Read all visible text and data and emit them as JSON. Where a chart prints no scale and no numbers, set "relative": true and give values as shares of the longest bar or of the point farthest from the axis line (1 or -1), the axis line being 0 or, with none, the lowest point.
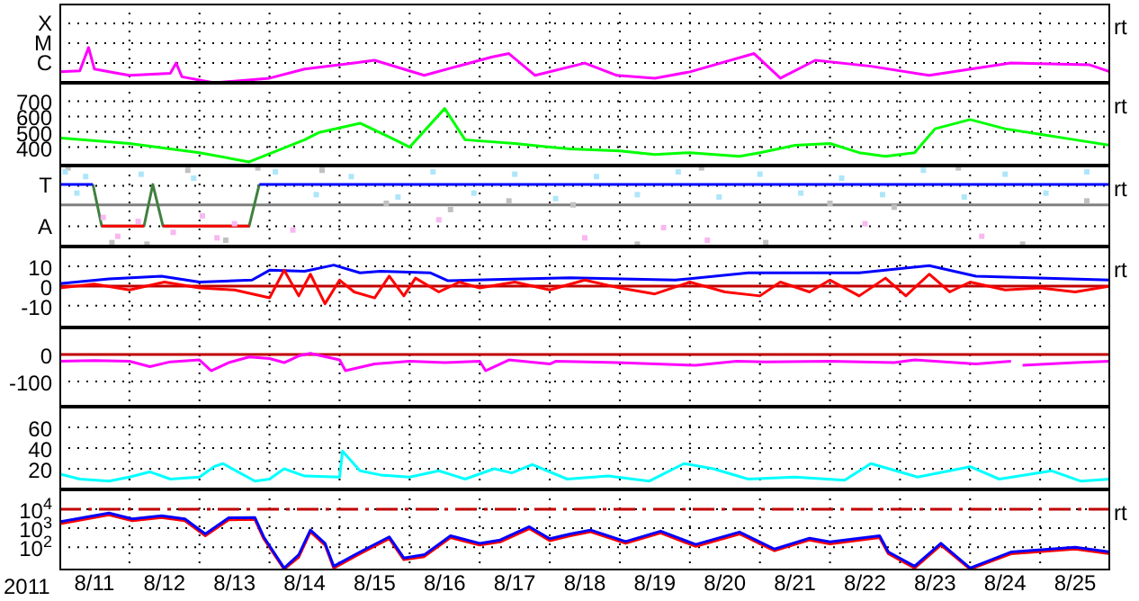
{
  "chart_data": [
    {
      "type": "line",
      "relative": true,
      "xlim": [
        "2011-08-11",
        "2011-08-26"
      ],
      "xticks": [
        {
          "value": "2011-08-12",
          "label": null
        },
        {
          "value": "2011-08-13",
          "label": null
        },
        {
          "value": "2011-08-14",
          "label": null
        },
        {
          "value": "2011-08-15",
          "label": null
        },
        {
          "value": "2011-08-16",
          "label": null
        },
        {
          "value": "2011-08-17",
          "label": null
        },
        {
          "value": "2011-08-18",
          "label": null
        },
        {
          "value": "2011-08-19",
          "label": null
        },
        {
          "value": "2011-08-20",
          "label": null
        },
        {
          "value": "2011-08-21",
          "label": null
        },
        {
          "value": "2011-08-22",
          "label": null
        },
        {
          "value": "2011-08-23",
          "label": null
        },
        {
          "value": "2011-08-24",
          "label": null
        },
        {
          "value": "2011-08-25",
          "label": null
        }
      ],
      "grid": true,
      "tick_labels": "y",
      "annotations": [
        "rt",
        "X",
        "M",
        "C"
      ],
      "series": [
        {
          "color": "#ff00ff",
          "x": [
            "2011-08-11T00:00",
            "2011-08-11T07:00",
            "2011-08-11T10:00",
            "2011-08-11T12:00",
            "2011-08-11T20:00",
            "2011-08-12T00:00",
            "2011-08-12T14:00",
            "2011-08-12T16:00",
            "2011-08-12T18:00",
            "2011-08-13T05:00",
            "2011-08-14T00:00",
            "2011-08-14T12:00",
            "2011-08-15T05:00",
            "2011-08-15T12:00",
            "2011-08-16T05:00",
            "2011-08-17T04:00",
            "2011-08-17T10:00",
            "2011-08-17T19:00",
            "2011-08-18T12:00",
            "2011-08-18T23:00",
            "2011-08-19T12:00",
            "2011-08-20T00:00",
            "2011-08-20T22:00",
            "2011-08-21T07:00",
            "2011-08-21T19:00",
            "2011-08-22T14:00",
            "2011-08-23T10:00",
            "2011-08-24T14:00",
            "2011-08-25T17:00",
            "2011-08-26T00:00"
          ],
          "values": [
            0.31,
            0.34,
            1,
            0.39,
            0.27,
            0.21,
            0.27,
            0.56,
            0.17,
            0,
            0.13,
            0.39,
            0.56,
            0.64,
            0.21,
            0.73,
            0.83,
            0.21,
            0.56,
            0.21,
            0.13,
            0.31,
            0.83,
            0.13,
            0.64,
            0.47,
            0.21,
            0.56,
            0.51,
            0.31
          ]
        }
      ]
    },
    {
      "type": "line",
      "ylim": [
        280,
        820
      ],
      "yticks": [
        400,
        500,
        600,
        700
      ],
      "xlim": [
        "2011-08-11",
        "2011-08-26"
      ],
      "xticks": [
        {
          "value": "2011-08-12",
          "label": null
        },
        {
          "value": "2011-08-13",
          "label": null
        },
        {
          "value": "2011-08-14",
          "label": null
        },
        {
          "value": "2011-08-15",
          "label": null
        },
        {
          "value": "2011-08-16",
          "label": null
        },
        {
          "value": "2011-08-17",
          "label": null
        },
        {
          "value": "2011-08-18",
          "label": null
        },
        {
          "value": "2011-08-19",
          "label": null
        },
        {
          "value": "2011-08-20",
          "label": null
        },
        {
          "value": "2011-08-21",
          "label": null
        },
        {
          "value": "2011-08-22",
          "label": null
        },
        {
          "value": "2011-08-23",
          "label": null
        },
        {
          "value": "2011-08-24",
          "label": null
        },
        {
          "value": "2011-08-25",
          "label": null
        }
      ],
      "grid": true,
      "tick_labels": "y",
      "annotations": [
        "rt"
      ],
      "series": [
        {
          "color": "#00ff00",
          "x": [
            "2011-08-11T00:00",
            "2011-08-12T00:00",
            "2011-08-13T00:00",
            "2011-08-13T17:00",
            "2011-08-14T12:00",
            "2011-08-14T17:00",
            "2011-08-15T07:00",
            "2011-08-15T19:00",
            "2011-08-16T00:00",
            "2011-08-16T12:00",
            "2011-08-16T19:00",
            "2011-08-17T12:00",
            "2011-08-18T00:00",
            "2011-08-18T07:00",
            "2011-08-19T00:00",
            "2011-08-19T12:00",
            "2011-08-20T00:00",
            "2011-08-20T17:00",
            "2011-08-21T00:00",
            "2011-08-21T12:00",
            "2011-08-22T00:00",
            "2011-08-22T10:00",
            "2011-08-22T19:00",
            "2011-08-23T05:00",
            "2011-08-23T12:00",
            "2011-08-24T00:00",
            "2011-08-24T12:00",
            "2011-08-25T00:00",
            "2011-08-25T12:00",
            "2011-08-26T00:00"
          ],
          "values": [
            460,
            424,
            364,
            304,
            448,
            496,
            556,
            448,
            400,
            652,
            448,
            424,
            400,
            388,
            376,
            352,
            364,
            340,
            364,
            412,
            424,
            364,
            340,
            364,
            520,
            580,
            520,
            484,
            448,
            412
          ]
        }
      ]
    },
    {
      "type": "line",
      "relative": true,
      "xlim": [
        "2011-08-11",
        "2011-08-26"
      ],
      "xticks": [
        {
          "value": "2011-08-12",
          "label": null
        },
        {
          "value": "2011-08-13",
          "label": null
        },
        {
          "value": "2011-08-14",
          "label": null
        },
        {
          "value": "2011-08-15",
          "label": null
        },
        {
          "value": "2011-08-16",
          "label": null
        },
        {
          "value": "2011-08-17",
          "label": null
        },
        {
          "value": "2011-08-18",
          "label": null
        },
        {
          "value": "2011-08-19",
          "label": null
        },
        {
          "value": "2011-08-20",
          "label": null
        },
        {
          "value": "2011-08-21",
          "label": null
        },
        {
          "value": "2011-08-22",
          "label": null
        },
        {
          "value": "2011-08-23",
          "label": null
        },
        {
          "value": "2011-08-24",
          "label": null
        },
        {
          "value": "2011-08-25",
          "label": null
        }
      ],
      "grid": true,
      "tick_labels": "y",
      "annotations": [
        "rt",
        "T",
        "A"
      ],
      "ref_lines": [
        {
          "axis": "y",
          "value": 0.53,
          "label": null,
          "color": "#808080"
        }
      ],
      "series": [
        {
          "type": "scatter",
          "marker": "square",
          "color": "#c0c0c0",
          "x": [
            "2011-08-11T03:00",
            "2011-08-11T18:00",
            "2011-08-12T06:00",
            "2011-08-12T20:00",
            "2011-08-13T09:00",
            "2011-08-13T20:00",
            "2011-08-14T18:00",
            "2011-08-15T16:00",
            "2011-08-16T14:00",
            "2011-08-17T10:00",
            "2011-08-18T08:00",
            "2011-08-19T06:00",
            "2011-08-20T04:00",
            "2011-08-21T02:00",
            "2011-08-22T00:00",
            "2011-08-22T22:00",
            "2011-08-23T20:00",
            "2011-08-24T18:00",
            "2011-08-25T16:00"
          ],
          "values": [
            1,
            0.05,
            0.03,
            0.97,
            0.08,
            1,
            0.97,
            0.55,
            0.47,
            0.58,
            0.53,
            0.03,
            1,
            0.05,
            0.55,
            0.5,
            1,
            0.03,
            0.58
          ]
        },
        {
          "type": "scatter",
          "marker": "square",
          "color": "#aee6f9",
          "x": [
            "2011-08-11T02:00",
            "2011-08-11T06:00",
            "2011-08-11T09:00",
            "2011-08-12T04:00",
            "2011-08-12T22:00",
            "2011-08-14T02:00",
            "2011-08-14T16:00",
            "2011-08-15T04:00",
            "2011-08-15T20:00",
            "2011-08-16T08:00",
            "2011-08-16T22:00",
            "2011-08-17T12:00",
            "2011-08-18T02:00",
            "2011-08-18T16:00",
            "2011-08-19T06:00",
            "2011-08-19T20:00",
            "2011-08-20T10:00",
            "2011-08-21T00:00",
            "2011-08-21T14:00",
            "2011-08-22T04:00",
            "2011-08-22T18:00",
            "2011-08-23T08:00",
            "2011-08-23T22:00",
            "2011-08-24T12:00",
            "2011-08-25T02:00",
            "2011-08-25T16:00"
          ],
          "values": [
            0.95,
            0.68,
            0.89,
            0.92,
            0.87,
            0.95,
            0.66,
            0.89,
            0.63,
            0.95,
            0.68,
            0.92,
            0.61,
            0.89,
            0.66,
            0.95,
            0.63,
            0.92,
            0.68,
            0.87,
            0.66,
            0.97,
            0.63,
            0.92,
            0.68,
            0.95
          ]
        },
        {
          "type": "scatter",
          "marker": "square",
          "color": "#f8b8f0",
          "x": [
            "2011-08-11T15:00",
            "2011-08-11T20:00",
            "2011-08-12T03:00",
            "2011-08-12T15:00",
            "2011-08-13T01:00",
            "2011-08-13T06:00",
            "2011-08-13T12:00",
            "2011-08-14T08:00",
            "2011-08-16T10:00",
            "2011-08-18T12:00",
            "2011-08-19T15:00",
            "2011-08-20T06:00",
            "2011-08-22T12:00",
            "2011-08-24T04:00"
          ],
          "values": [
            0.37,
            0.13,
            0.32,
            0.18,
            0.39,
            0.11,
            0.29,
            0.21,
            0.34,
            0.11,
            0.24,
            0.08,
            0.29,
            0.13
          ]
        },
        {
          "color": "#408040",
          "x": [
            "2011-08-11T11:30",
            "2011-08-11T14:30",
            "2011-08-12T05:00",
            "2011-08-12T08:00",
            "2011-08-12T11:30",
            "2011-08-13T17:00",
            "2011-08-13T20:30"
          ],
          "values": [
            0.79,
            0.26,
            0.26,
            0.79,
            0.26,
            0.26,
            0.79
          ]
        },
        {
          "color": "#ff0000",
          "x": [
            "2011-08-11T14:30",
            "2011-08-12T05:00",
            null,
            "2011-08-12T11:30",
            "2011-08-13T17:00"
          ],
          "values": [
            0.26,
            0.26,
            null,
            0.26,
            0.26
          ]
        },
        {
          "color": "#0000ff",
          "x": [
            "2011-08-11T00:00",
            "2011-08-11T11:30",
            null,
            "2011-08-13T20:30",
            "2011-08-26T00:00"
          ],
          "values": [
            0.79,
            0.79,
            null,
            0.79,
            0.79
          ]
        }
      ]
    },
    {
      "type": "line",
      "ylim": [
        -21,
        20
      ],
      "yticks": [
        10,
        0,
        -10
      ],
      "xlim": [
        "2011-08-11",
        "2011-08-26"
      ],
      "xticks": [
        {
          "value": "2011-08-12",
          "label": null
        },
        {
          "value": "2011-08-13",
          "label": null
        },
        {
          "value": "2011-08-14",
          "label": null
        },
        {
          "value": "2011-08-15",
          "label": null
        },
        {
          "value": "2011-08-16",
          "label": null
        },
        {
          "value": "2011-08-17",
          "label": null
        },
        {
          "value": "2011-08-18",
          "label": null
        },
        {
          "value": "2011-08-19",
          "label": null
        },
        {
          "value": "2011-08-20",
          "label": null
        },
        {
          "value": "2011-08-21",
          "label": null
        },
        {
          "value": "2011-08-22",
          "label": null
        },
        {
          "value": "2011-08-23",
          "label": null
        },
        {
          "value": "2011-08-24",
          "label": null
        },
        {
          "value": "2011-08-25",
          "label": null
        }
      ],
      "grid": true,
      "tick_labels": "y",
      "annotations": [
        "rt"
      ],
      "ref_lines": [
        {
          "axis": "y",
          "value": 0,
          "label": null,
          "color": "#c00000"
        }
      ],
      "series": [
        {
          "color": "#0000ff",
          "x": [
            "2011-08-11T00:00",
            "2011-08-11T17:00",
            "2011-08-12T11:00",
            "2011-08-13T00:00",
            "2011-08-13T18:00",
            "2011-08-14T00:00",
            "2011-08-14T12:00",
            "2011-08-14T22:00",
            "2011-08-15T07:00",
            "2011-08-15T14:00",
            "2011-08-16T07:00",
            "2011-08-16T13:00",
            "2011-08-17T14:00",
            "2011-08-18T07:00",
            "2011-08-19T19:00",
            "2011-08-20T20:00",
            "2011-08-22T10:00",
            "2011-08-23T10:00",
            "2011-08-24T02:00",
            "2011-08-26T00:00"
          ],
          "values": [
            1.2,
            3.6,
            5,
            2,
            3,
            8,
            7.5,
            10.6,
            6.7,
            7.5,
            6.7,
            2.7,
            3.6,
            4.2,
            3,
            6.7,
            6.7,
            10.3,
            5,
            3
          ]
        },
        {
          "color": "#ff0000",
          "x": [
            "2011-08-11T00:00",
            "2011-08-11T12:00",
            "2011-08-12T00:00",
            "2011-08-12T12:00",
            "2011-08-13T00:00",
            "2011-08-13T12:00",
            "2011-08-14T00:00",
            "2011-08-14T05:00",
            "2011-08-14T10:00",
            "2011-08-14T14:00",
            "2011-08-14T19:00",
            "2011-08-15T00:00",
            "2011-08-15T05:00",
            "2011-08-15T12:00",
            "2011-08-15T17:00",
            "2011-08-15T22:00",
            "2011-08-16T02:00",
            "2011-08-16T10:00",
            "2011-08-16T17:00",
            "2011-08-17T00:00",
            "2011-08-17T12:00",
            "2011-08-18T00:00",
            "2011-08-18T12:00",
            "2011-08-19T00:00",
            "2011-08-19T12:00",
            "2011-08-20T00:00",
            "2011-08-20T12:00",
            "2011-08-21T00:00",
            "2011-08-21T07:00",
            "2011-08-21T17:00",
            "2011-08-22T00:00",
            "2011-08-22T10:00",
            "2011-08-22T19:00",
            "2011-08-23T02:00",
            "2011-08-23T10:00",
            "2011-08-23T17:00",
            "2011-08-24T00:00",
            "2011-08-24T12:00",
            "2011-08-25T00:00",
            "2011-08-25T12:00",
            "2011-08-26T00:00"
          ],
          "values": [
            -1,
            1,
            -2,
            2,
            -1,
            -2,
            -6,
            8,
            -5,
            6,
            -9,
            3,
            -3,
            -6,
            5,
            -5,
            4,
            -3,
            2,
            -1,
            2,
            -2,
            3,
            -1,
            -4,
            2,
            -3,
            -5,
            2,
            -3,
            3,
            -5,
            4,
            -5,
            6,
            -3,
            2,
            -2,
            -1,
            -3,
            0
          ]
        }
      ]
    },
    {
      "type": "line",
      "ylim": [
        -193,
        100
      ],
      "yticks": [
        0,
        -100
      ],
      "xlim": [
        "2011-08-11",
        "2011-08-26"
      ],
      "xticks": [
        {
          "value": "2011-08-12",
          "label": null
        },
        {
          "value": "2011-08-13",
          "label": null
        },
        {
          "value": "2011-08-14",
          "label": null
        },
        {
          "value": "2011-08-15",
          "label": null
        },
        {
          "value": "2011-08-16",
          "label": null
        },
        {
          "value": "2011-08-17",
          "label": null
        },
        {
          "value": "2011-08-18",
          "label": null
        },
        {
          "value": "2011-08-19",
          "label": null
        },
        {
          "value": "2011-08-20",
          "label": null
        },
        {
          "value": "2011-08-21",
          "label": null
        },
        {
          "value": "2011-08-22",
          "label": null
        },
        {
          "value": "2011-08-23",
          "label": null
        },
        {
          "value": "2011-08-24",
          "label": null
        },
        {
          "value": "2011-08-25",
          "label": null
        }
      ],
      "grid": true,
      "tick_labels": "y",
      "ref_lines": [
        {
          "axis": "y",
          "value": 0,
          "label": null,
          "color": "#c00000"
        }
      ],
      "series": [
        {
          "color": "#ff00ff",
          "x": [
            "2011-08-11T00:00",
            "2011-08-11T12:00",
            "2011-08-12T00:00",
            "2011-08-12T07:00",
            "2011-08-12T14:00",
            "2011-08-13T00:00",
            "2011-08-13T04:00",
            "2011-08-13T10:00",
            "2011-08-13T17:00",
            "2011-08-14T00:00",
            "2011-08-14T05:00",
            "2011-08-14T10:00",
            "2011-08-14T14:00",
            "2011-08-15T00:00",
            "2011-08-15T02:00",
            "2011-08-15T12:00",
            "2011-08-16T00:00",
            "2011-08-16T12:00",
            "2011-08-17T00:00",
            "2011-08-17T02:00",
            "2011-08-17T10:00",
            "2011-08-18T00:00",
            "2011-08-18T02:00",
            "2011-08-18T23:00",
            "2011-08-20T02:00",
            "2011-08-20T16:00",
            "2011-08-21T02:00",
            "2011-08-22T00:00",
            "2011-08-22T22:00",
            "2011-08-23T05:00",
            "2011-08-24T02:00",
            "2011-08-24T14:00",
            null,
            "2011-08-24T18:00",
            "2011-08-25T12:00",
            "2011-08-26T00:00"
          ],
          "values": [
            -25,
            -22,
            -25,
            -45,
            -27,
            -20,
            -60,
            -30,
            -9,
            -15,
            -30,
            -5,
            4,
            -20,
            -60,
            -35,
            -25,
            -30,
            -25,
            -60,
            -20,
            -35,
            -25,
            -30,
            -40,
            -25,
            -27,
            -25,
            -30,
            -20,
            -35,
            -25,
            null,
            -40,
            -30,
            -25
          ]
        }
      ]
    },
    {
      "type": "line",
      "ylim": [
        0,
        80
      ],
      "yticks": [
        20,
        40,
        60
      ],
      "xlim": [
        "2011-08-11",
        "2011-08-26"
      ],
      "xticks": [
        {
          "value": "2011-08-12",
          "label": null
        },
        {
          "value": "2011-08-13",
          "label": null
        },
        {
          "value": "2011-08-14",
          "label": null
        },
        {
          "value": "2011-08-15",
          "label": null
        },
        {
          "value": "2011-08-16",
          "label": null
        },
        {
          "value": "2011-08-17",
          "label": null
        },
        {
          "value": "2011-08-18",
          "label": null
        },
        {
          "value": "2011-08-19",
          "label": null
        },
        {
          "value": "2011-08-20",
          "label": null
        },
        {
          "value": "2011-08-21",
          "label": null
        },
        {
          "value": "2011-08-22",
          "label": null
        },
        {
          "value": "2011-08-23",
          "label": null
        },
        {
          "value": "2011-08-24",
          "label": null
        },
        {
          "value": "2011-08-25",
          "label": null
        }
      ],
      "grid": true,
      "tick_labels": "y",
      "series": [
        {
          "color": "#00ffff",
          "x": [
            "2011-08-11T00:00",
            "2011-08-11T07:00",
            "2011-08-11T17:00",
            "2011-08-12T00:00",
            "2011-08-12T07:00",
            "2011-08-12T14:00",
            "2011-08-13T00:00",
            "2011-08-13T05:00",
            "2011-08-13T08:00",
            "2011-08-13T19:00",
            "2011-08-14T00:00",
            "2011-08-14T05:00",
            "2011-08-14T12:00",
            "2011-08-15T00:00",
            "2011-08-15T01:00",
            "2011-08-15T07:00",
            "2011-08-15T14:00",
            "2011-08-16T00:00",
            "2011-08-16T10:00",
            "2011-08-16T19:00",
            "2011-08-17T05:00",
            "2011-08-17T11:00",
            "2011-08-17T18:00",
            "2011-08-18T06:00",
            "2011-08-18T20:00",
            "2011-08-19T10:00",
            "2011-08-19T22:00",
            "2011-08-20T08:00",
            "2011-08-20T20:00",
            "2011-08-21T12:00",
            "2011-08-22T05:00",
            "2011-08-22T14:00",
            "2011-08-23T06:00",
            "2011-08-24T00:00",
            "2011-08-24T10:00",
            "2011-08-25T04:00",
            "2011-08-25T14:00",
            "2011-08-26T00:00"
          ],
          "values": [
            15,
            10,
            8,
            12,
            17,
            10,
            12,
            22,
            25,
            8,
            10,
            20,
            13,
            12,
            37,
            18,
            14,
            12,
            18,
            10,
            20,
            16,
            24,
            10,
            13,
            8,
            25,
            20,
            10,
            12,
            9,
            25,
            12,
            22,
            10,
            18,
            8,
            10
          ]
        }
      ]
    },
    {
      "type": "line",
      "log": true,
      "ylim": [
        6,
        110000
      ],
      "yticks": [
        {
          "value": 10000,
          "label": "10$^{4}$"
        },
        {
          "value": 1000,
          "label": "10$^{3}$"
        },
        {
          "value": 100,
          "label": "10$^{2}$"
        }
      ],
      "xlim": [
        "2011-08-11",
        "2011-08-26"
      ],
      "xticks": [
        {
          "value": "2011-08-11T12:00",
          "label": "8/11"
        },
        {
          "value": "2011-08-12",
          "label": null
        },
        {
          "value": "2011-08-12T12:00",
          "label": "8/12"
        },
        {
          "value": "2011-08-13",
          "label": null
        },
        {
          "value": "2011-08-13T12:00",
          "label": "8/13"
        },
        {
          "value": "2011-08-14",
          "label": null
        },
        {
          "value": "2011-08-14T12:00",
          "label": "8/14"
        },
        {
          "value": "2011-08-15",
          "label": null
        },
        {
          "value": "2011-08-15T12:00",
          "label": "8/15"
        },
        {
          "value": "2011-08-16",
          "label": null
        },
        {
          "value": "2011-08-16T12:00",
          "label": "8/16"
        },
        {
          "value": "2011-08-17",
          "label": null
        },
        {
          "value": "2011-08-17T12:00",
          "label": "8/17"
        },
        {
          "value": "2011-08-18",
          "label": null
        },
        {
          "value": "2011-08-18T12:00",
          "label": "8/18"
        },
        {
          "value": "2011-08-19",
          "label": null
        },
        {
          "value": "2011-08-19T12:00",
          "label": "8/19"
        },
        {
          "value": "2011-08-20",
          "label": null
        },
        {
          "value": "2011-08-20T12:00",
          "label": "8/20"
        },
        {
          "value": "2011-08-21",
          "label": null
        },
        {
          "value": "2011-08-21T12:00",
          "label": "8/21"
        },
        {
          "value": "2011-08-22",
          "label": null
        },
        {
          "value": "2011-08-22T12:00",
          "label": "8/22"
        },
        {
          "value": "2011-08-23",
          "label": null
        },
        {
          "value": "2011-08-23T12:00",
          "label": "8/23"
        },
        {
          "value": "2011-08-24",
          "label": null
        },
        {
          "value": "2011-08-24T12:00",
          "label": "8/24"
        },
        {
          "value": "2011-08-25",
          "label": null
        },
        {
          "value": "2011-08-25T12:00",
          "label": "8/25"
        }
      ],
      "grid": true,
      "xlabel": "2011",
      "annotations": [
        "rt"
      ],
      "ref_lines": [
        {
          "axis": "y",
          "value": 10000,
          "label": null,
          "color": "#c00000",
          "line_style": "dashed"
        }
      ],
      "series": [
        {
          "color": "#ff0000",
          "x": [
            "2011-08-11T00:00",
            "2011-08-11T17:00",
            "2011-08-12T01:00",
            "2011-08-12T11:00",
            "2011-08-12T19:00",
            "2011-08-13T02:00",
            "2011-08-13T10:00",
            "2011-08-13T19:00",
            "2011-08-13T22:00",
            "2011-08-14T05:00",
            "2011-08-14T10:00",
            "2011-08-14T14:00",
            "2011-08-14T19:00",
            "2011-08-14T22:00",
            "2011-08-15T07:00",
            "2011-08-15T17:00",
            "2011-08-15T22:00",
            "2011-08-16T05:00",
            "2011-08-16T14:00",
            "2011-08-17T00:00",
            "2011-08-17T07:00",
            "2011-08-17T17:00",
            "2011-08-18T00:00",
            "2011-08-18T07:00",
            "2011-08-18T14:00",
            "2011-08-19T02:00",
            "2011-08-19T14:00",
            "2011-08-20T02:00",
            "2011-08-20T17:00",
            "2011-08-21T05:00",
            "2011-08-21T17:00",
            "2011-08-22T00:00",
            "2011-08-22T17:00",
            "2011-08-22T20:00",
            "2011-08-23T05:00",
            "2011-08-23T14:00",
            "2011-08-24T00:00",
            "2011-08-24T14:00",
            "2011-08-25T12:00",
            "2011-08-26T00:00"
          ],
          "values": [
            1700,
            5000,
            2500,
            3600,
            2500,
            400,
            2800,
            2900,
            280,
            7,
            30,
            650,
            130,
            8,
            45,
            280,
            22,
            32,
            320,
            130,
            190,
            950,
            220,
            400,
            650,
            160,
            560,
            110,
            500,
            65,
            240,
            150,
            320,
            45,
            8,
            130,
            7,
            45,
            80,
            45
          ]
        },
        {
          "color": "#0000ff",
          "x": [
            "2011-08-11T00:00",
            "2011-08-11T17:00",
            "2011-08-12T01:00",
            "2011-08-12T11:00",
            "2011-08-12T19:00",
            "2011-08-13T02:00",
            "2011-08-13T10:00",
            "2011-08-13T19:00",
            "2011-08-13T22:00",
            "2011-08-14T05:00",
            "2011-08-14T10:00",
            "2011-08-14T14:00",
            "2011-08-14T19:00",
            "2011-08-14T22:00",
            "2011-08-15T07:00",
            "2011-08-15T17:00",
            "2011-08-15T22:00",
            "2011-08-16T05:00",
            "2011-08-16T14:00",
            "2011-08-17T00:00",
            "2011-08-17T07:00",
            "2011-08-17T17:00",
            "2011-08-18T00:00",
            "2011-08-18T07:00",
            "2011-08-18T14:00",
            "2011-08-19T02:00",
            "2011-08-19T14:00",
            "2011-08-20T02:00",
            "2011-08-20T17:00",
            "2011-08-21T05:00",
            "2011-08-21T17:00",
            "2011-08-22T00:00",
            "2011-08-22T17:00",
            "2011-08-22T20:00",
            "2011-08-23T05:00",
            "2011-08-23T14:00",
            "2011-08-24T00:00",
            "2011-08-24T14:00",
            "2011-08-25T12:00",
            "2011-08-26T00:00"
          ],
          "values": [
            2150,
            6300,
            3100,
            4500,
            3100,
            500,
            3500,
            3600,
            350,
            8,
            40,
            800,
            160,
            10,
            56,
            350,
            27,
            40,
            400,
            160,
            240,
            1200,
            280,
            500,
            800,
            200,
            700,
            140,
            630,
            80,
            300,
            190,
            400,
            56,
            10,
            160,
            8,
            56,
            100,
            56
          ]
        }
      ]
    }
  ]
}
